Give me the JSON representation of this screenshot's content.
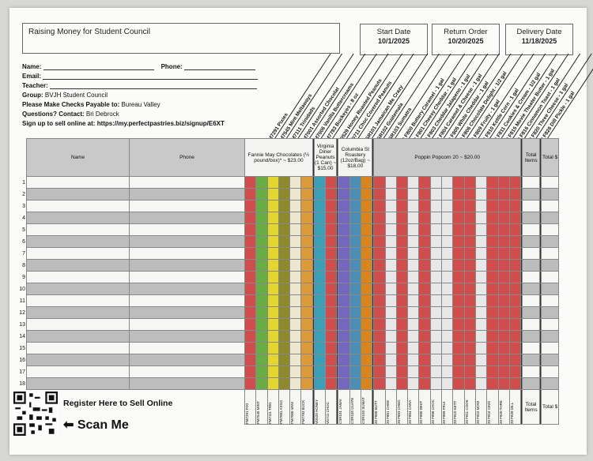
{
  "title": "Raising Money for Student Council",
  "dates": [
    {
      "label": "Start Date",
      "value": "10/1/2025"
    },
    {
      "label": "Return Order",
      "value": "10/20/2025"
    },
    {
      "label": "Delivery Date",
      "value": "11/18/2025"
    }
  ],
  "info": {
    "name_label": "Name:",
    "phone_label": "Phone:",
    "email_label": "Email:",
    "teacher_label": "Teacher:",
    "group_label": "Group:",
    "group_value": "BVJH Student Council",
    "checks_label": "Please Make Checks Payable to:",
    "checks_value": "Bureau Valley",
    "questions_label": "Questions? Contact:",
    "questions_value": "Bri Debrock",
    "signup_label": "Sign up to sell online at:",
    "signup_url": "https://my.perfectpastries.biz/signup/E6XT"
  },
  "products": [
    "FM7291 Pixies",
    "FM7545 Mint Meltaways",
    "FM7111 Trinidads",
    "FM7001 Assorted Chocolat",
    "FM7006 Vanilla Buttercreams",
    "FM7783 Buckeyes - 8 oz",
    "VD529 Honey Roasted Peanuts",
    "VD711 Choc Covered Peanuts",
    "CSR101 Jamaican Me Crazy",
    "CSR102 Guatemala",
    "CSR103 Sumatra",
    "20 F800 Buttery Caramel - 1 gal",
    "20 F801 Cheesy Cheddar - 1 gal",
    "20 F803 Cheddar Jalapeno - 1 gal",
    "20 F804 Caramel & Cheese - 1 gal",
    "20 F805 White Cheddar - 1 gal",
    "20 F806 Chocolate Delight - 1/2 gal",
    "20 F809 Fruity - 1 gal",
    "20 F810 Kettle Corn - 1 gal",
    "20 F811 Cookies & Cream - 1/2 gal",
    "20 F815 Movie Theater Butter - 1 gal",
    "20 F816 Cinnamon Toast - 1 gal",
    "20 F820 Three Cheese - 1 gal",
    "20 F826 Dill Pickle - 1 gal"
  ],
  "headers": {
    "name": "Name",
    "phone": "Phone",
    "fannie": "Fannie May Chocolates (½ pound/box)* ~ $23.00",
    "virginia": "Virginia Diner Peanuts (1 Can) ~ $15.00",
    "columbia": "Columbia St Roastery (12oz/Bag) ~ $18.00",
    "poppin": "Poppin Popcorn 20 ~ $20.00",
    "total_items": "Total Items",
    "total_dollars": "Total $"
  },
  "codes": [
    "FM7291 PIXI",
    "FM7545 MINT",
    "FM7111 TRIN",
    "FM7001 ASSO",
    "FM7006 VANI",
    "FM7783 BUCK",
    "VD529 HONEY",
    "VD711 CHOC",
    "CSR101 JAMAI",
    "CSR102 GUATE",
    "CSR103 SUMAT",
    "20 F800 BUTT",
    "20 F801 CHEE",
    "20 F803 CHED",
    "20 F804 CARA",
    "20 F805 WHIT",
    "20 F806 CHOC",
    "20 F809 FRUI",
    "20 F810 KETT",
    "20 F811 COOK",
    "20 F815 MOVI",
    "20 F816 CINN",
    "20 F820 THRE",
    "20 F826 DILL"
  ],
  "row_numbers": [
    "1",
    "2",
    "3",
    "4",
    "5",
    "6",
    "7",
    "8",
    "9",
    "10",
    "11",
    "12",
    "13",
    "14",
    "15",
    "16",
    "17",
    "18"
  ],
  "column_colors": [
    "#cf4d4d",
    "#67ac45",
    "#e3d62f",
    "#8c8a2d",
    "#ece8d0",
    "#dc9a3a",
    "#3c9fba",
    "#cf4d4d",
    "#7368bb",
    "#4d8fb4",
    "#d8851e",
    "#cf4d4d",
    "#e8e8e8",
    "#cf4d4d",
    "#e8e8e8",
    "#cf4d4d",
    "#e8e8e8",
    "#e8e8e8",
    "#cf4d4d",
    "#cf4d4d",
    "#e8e8e8",
    "#cf4d4d",
    "#cf4d4d",
    "#cf4d4d"
  ],
  "footer": {
    "register": "Register Here to Sell Online",
    "scan": "Scan Me",
    "total_items": "Total Items",
    "total_dollars": "Total $"
  }
}
